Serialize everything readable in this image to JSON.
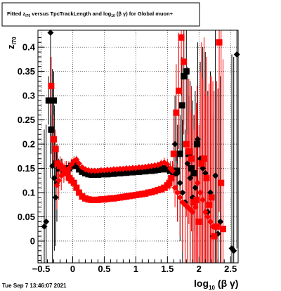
{
  "title": {
    "text_prefix": "Fitted  z",
    "sub_z": "I70",
    "text_mid": " versus TpcTrackLength and log",
    "sub_log": "10",
    "text_suffix": " (β  γ) for Global muon+"
  },
  "footer": {
    "timestamp": "Tue Sep  7 13:46:07 2021"
  },
  "colors": {
    "black_series": "#000000",
    "red_series": "#ff0000",
    "frame": "#000000",
    "background": "#ffffff"
  },
  "chart_data": {
    "type": "scatter",
    "title": "Fitted z_I70 versus TpcTrackLength and log10(β γ) for Global muon+",
    "xlabel_main": "log",
    "xlabel_sub": "10",
    "xlabel_tail": "(β γ)",
    "ylabel_main": "z",
    "ylabel_sub": "I70",
    "xlim": [
      -0.55,
      2.62
    ],
    "ylim": [
      -0.045,
      0.435
    ],
    "x_ticks": [
      -0.5,
      0,
      0.5,
      1,
      1.5,
      2,
      2.5
    ],
    "x_tick_labels": [
      "−0.5",
      "0",
      "0.5",
      "1",
      "1.5",
      "2",
      "2.5"
    ],
    "y_ticks": [
      0,
      0.05,
      0.1,
      0.15,
      0.2,
      0.25,
      0.3,
      0.35,
      0.4
    ],
    "y_tick_labels": [
      "0",
      "0.05",
      "0.1",
      "0.15",
      "0.2",
      "0.25",
      "0.3",
      "0.35",
      "0.4"
    ],
    "grid": true,
    "series": [
      {
        "color": "#000000",
        "marker": "square",
        "points": [
          [
            -0.38,
            0.29,
            0.05
          ],
          [
            -0.34,
            0.23,
            0.05
          ],
          [
            -0.3,
            0.29,
            0.06
          ],
          [
            -0.26,
            0.16,
            0.03
          ],
          [
            -0.22,
            0.15,
            0.02
          ],
          [
            -0.18,
            0.15,
            0.02
          ],
          [
            -0.14,
            0.145,
            0.01
          ],
          [
            -0.1,
            0.145,
            0.01
          ],
          [
            -0.06,
            0.15,
            0.01
          ],
          [
            -0.02,
            0.155,
            0.01
          ],
          [
            0.02,
            0.16,
            0.01
          ],
          [
            0.06,
            0.155,
            0.008
          ],
          [
            0.1,
            0.148,
            0.006
          ],
          [
            0.15,
            0.143,
            0.005
          ],
          [
            0.2,
            0.14,
            0.004
          ],
          [
            0.25,
            0.138,
            0.004
          ],
          [
            0.3,
            0.137,
            0.004
          ],
          [
            0.35,
            0.137,
            0.004
          ],
          [
            0.4,
            0.137,
            0.004
          ],
          [
            0.45,
            0.138,
            0.004
          ],
          [
            0.5,
            0.138,
            0.004
          ],
          [
            0.55,
            0.138,
            0.004
          ],
          [
            0.6,
            0.139,
            0.004
          ],
          [
            0.65,
            0.139,
            0.004
          ],
          [
            0.7,
            0.14,
            0.004
          ],
          [
            0.75,
            0.14,
            0.004
          ],
          [
            0.8,
            0.141,
            0.004
          ],
          [
            0.85,
            0.141,
            0.004
          ],
          [
            0.9,
            0.142,
            0.004
          ],
          [
            0.95,
            0.142,
            0.004
          ],
          [
            1.0,
            0.143,
            0.004
          ],
          [
            1.05,
            0.143,
            0.004
          ],
          [
            1.1,
            0.144,
            0.004
          ],
          [
            1.15,
            0.144,
            0.004
          ],
          [
            1.2,
            0.145,
            0.005
          ],
          [
            1.25,
            0.145,
            0.005
          ],
          [
            1.3,
            0.146,
            0.005
          ],
          [
            1.35,
            0.147,
            0.005
          ],
          [
            1.4,
            0.148,
            0.006
          ],
          [
            1.45,
            0.15,
            0.008
          ],
          [
            1.5,
            0.148,
            0.01
          ],
          [
            1.55,
            0.145,
            0.015
          ],
          [
            1.6,
            0.14,
            0.02
          ],
          [
            1.65,
            0.145,
            0.04
          ],
          [
            1.7,
            0.18,
            0.08
          ],
          [
            1.73,
            0.28,
            0.1
          ],
          [
            1.76,
            0.34,
            0.1
          ],
          [
            1.8,
            0.35,
            0.12
          ],
          [
            1.84,
            0.18,
            0.12
          ],
          [
            1.88,
            0.15,
            0.12
          ],
          [
            1.92,
            0.14,
            0.12
          ],
          [
            1.97,
            0.2,
            0.12
          ]
        ]
      },
      {
        "color": "#000000",
        "marker": "diamond",
        "points": [
          [
            -0.45,
            0.03,
            0.2
          ],
          [
            -0.42,
            0.04,
            0.2
          ],
          [
            -0.35,
            0.43,
            0.3
          ],
          [
            -0.32,
            0.155,
            0.2
          ],
          [
            -0.29,
            0.13,
            0.15
          ],
          [
            -0.27,
            0.09,
            0.1
          ],
          [
            -0.25,
            0.12,
            0.08
          ],
          [
            1.62,
            0.2,
            0.1
          ],
          [
            1.66,
            0.14,
            0.1
          ],
          [
            1.7,
            0.12,
            0.12
          ],
          [
            1.74,
            0.1,
            0.15
          ],
          [
            1.78,
            0.08,
            0.15
          ],
          [
            1.82,
            0.16,
            0.2
          ],
          [
            1.86,
            0.13,
            0.2
          ],
          [
            1.9,
            0.09,
            0.2
          ],
          [
            1.94,
            0.11,
            0.2
          ],
          [
            1.98,
            0.21,
            0.2
          ],
          [
            2.02,
            0.17,
            0.2
          ],
          [
            2.06,
            0.15,
            0.25
          ],
          [
            2.1,
            0.14,
            0.25
          ],
          [
            2.14,
            0.06,
            0.25
          ],
          [
            2.18,
            0.1,
            0.25
          ],
          [
            2.22,
            0.01,
            0.25
          ],
          [
            2.26,
            0.135,
            0.3
          ],
          [
            2.3,
            0.015,
            0.3
          ],
          [
            2.34,
            0.04,
            0.3
          ],
          [
            2.52,
            -0.015,
            0.4
          ],
          [
            2.55,
            -0.02,
            0.4
          ],
          [
            2.6,
            0.385,
            0.4
          ]
        ]
      },
      {
        "color": "#ff0000",
        "marker": "square",
        "points": [
          [
            -0.34,
            0.32,
            0.06
          ],
          [
            -0.3,
            0.21,
            0.05
          ],
          [
            -0.27,
            0.19,
            0.04
          ],
          [
            -0.24,
            0.16,
            0.03
          ],
          [
            -0.2,
            0.155,
            0.02
          ],
          [
            -0.16,
            0.15,
            0.02
          ],
          [
            -0.12,
            0.145,
            0.02
          ],
          [
            -0.08,
            0.14,
            0.015
          ],
          [
            -0.05,
            0.13,
            0.012
          ],
          [
            -0.02,
            0.125,
            0.01
          ],
          [
            0.02,
            0.12,
            0.008
          ],
          [
            0.06,
            0.11,
            0.006
          ],
          [
            0.1,
            0.1,
            0.005
          ],
          [
            0.15,
            0.092,
            0.004
          ],
          [
            0.2,
            0.088,
            0.004
          ],
          [
            0.25,
            0.086,
            0.004
          ],
          [
            0.3,
            0.085,
            0.004
          ],
          [
            0.35,
            0.085,
            0.004
          ],
          [
            0.4,
            0.085,
            0.004
          ],
          [
            0.45,
            0.086,
            0.004
          ],
          [
            0.5,
            0.086,
            0.004
          ],
          [
            0.55,
            0.087,
            0.004
          ],
          [
            0.6,
            0.088,
            0.004
          ],
          [
            0.65,
            0.088,
            0.004
          ],
          [
            0.7,
            0.089,
            0.004
          ],
          [
            0.75,
            0.09,
            0.004
          ],
          [
            0.8,
            0.091,
            0.004
          ],
          [
            0.85,
            0.092,
            0.004
          ],
          [
            0.9,
            0.093,
            0.004
          ],
          [
            0.95,
            0.094,
            0.004
          ],
          [
            1.0,
            0.095,
            0.004
          ],
          [
            1.05,
            0.096,
            0.004
          ],
          [
            1.1,
            0.097,
            0.005
          ],
          [
            1.15,
            0.098,
            0.005
          ],
          [
            1.2,
            0.1,
            0.005
          ],
          [
            1.25,
            0.101,
            0.005
          ],
          [
            1.3,
            0.103,
            0.006
          ],
          [
            1.35,
            0.105,
            0.006
          ],
          [
            1.4,
            0.107,
            0.007
          ],
          [
            1.45,
            0.11,
            0.01
          ],
          [
            1.5,
            0.115,
            0.012
          ],
          [
            1.53,
            0.12,
            0.015
          ],
          [
            1.56,
            0.13,
            0.02
          ],
          [
            1.6,
            0.18,
            0.08
          ],
          [
            1.64,
            0.265,
            0.1
          ],
          [
            1.68,
            0.31,
            0.12
          ],
          [
            1.72,
            0.42,
            0.12
          ],
          [
            1.76,
            0.37,
            0.15
          ],
          [
            1.8,
            0.2,
            0.15
          ],
          [
            1.84,
            0.185,
            0.15
          ],
          [
            1.88,
            0.17,
            0.15
          ],
          [
            1.92,
            0.08,
            0.15
          ],
          [
            1.96,
            0.085,
            0.2
          ],
          [
            2.0,
            0.04,
            0.2
          ],
          [
            2.04,
            0.16,
            0.25
          ],
          [
            2.08,
            0.17,
            0.25
          ],
          [
            2.12,
            0.13,
            0.25
          ],
          [
            2.16,
            0.075,
            0.25
          ],
          [
            2.2,
            0.09,
            0.25
          ],
          [
            2.24,
            0.01,
            0.3
          ],
          [
            2.28,
            0.03,
            0.3
          ],
          [
            2.32,
            0.41,
            0.35
          ],
          [
            2.35,
            0.12,
            0.35
          ],
          [
            2.38,
            0.025,
            0.35
          ]
        ]
      },
      {
        "color": "#ff0000",
        "marker": "diamond",
        "points": [
          [
            -0.25,
            0.115,
            0.05
          ],
          [
            -0.22,
            0.125,
            0.04
          ],
          [
            -0.18,
            0.135,
            0.03
          ],
          [
            -0.14,
            0.14,
            0.02
          ],
          [
            -0.1,
            0.145,
            0.02
          ],
          [
            -0.06,
            0.15,
            0.015
          ],
          [
            -0.02,
            0.158,
            0.012
          ],
          [
            0.02,
            0.165,
            0.01
          ],
          [
            0.06,
            0.168,
            0.008
          ],
          [
            0.1,
            0.16,
            0.006
          ],
          [
            0.15,
            0.152,
            0.005
          ],
          [
            0.2,
            0.148,
            0.005
          ],
          [
            0.25,
            0.146,
            0.004
          ],
          [
            0.3,
            0.145,
            0.004
          ],
          [
            0.35,
            0.145,
            0.004
          ],
          [
            0.4,
            0.145,
            0.004
          ],
          [
            0.45,
            0.146,
            0.004
          ],
          [
            0.5,
            0.146,
            0.004
          ],
          [
            0.55,
            0.147,
            0.004
          ],
          [
            0.6,
            0.147,
            0.004
          ],
          [
            0.65,
            0.148,
            0.004
          ],
          [
            0.7,
            0.148,
            0.004
          ],
          [
            0.75,
            0.149,
            0.004
          ],
          [
            0.8,
            0.149,
            0.004
          ],
          [
            0.85,
            0.15,
            0.004
          ],
          [
            0.9,
            0.15,
            0.004
          ],
          [
            0.95,
            0.151,
            0.004
          ],
          [
            1.0,
            0.151,
            0.004
          ],
          [
            1.05,
            0.152,
            0.004
          ],
          [
            1.1,
            0.152,
            0.005
          ],
          [
            1.15,
            0.153,
            0.005
          ],
          [
            1.2,
            0.154,
            0.005
          ],
          [
            1.25,
            0.155,
            0.005
          ],
          [
            1.3,
            0.156,
            0.006
          ],
          [
            1.35,
            0.157,
            0.007
          ],
          [
            1.4,
            0.16,
            0.008
          ],
          [
            1.45,
            0.162,
            0.01
          ],
          [
            1.5,
            0.158,
            0.012
          ],
          [
            1.55,
            0.15,
            0.015
          ],
          [
            1.58,
            0.145,
            0.02
          ],
          [
            1.62,
            0.11,
            0.04
          ],
          [
            1.66,
            0.1,
            0.06
          ],
          [
            1.7,
            0.09,
            0.08
          ],
          [
            1.74,
            0.08,
            0.1
          ],
          [
            1.78,
            0.075,
            0.12
          ],
          [
            1.82,
            0.07,
            0.15
          ],
          [
            1.86,
            0.065,
            0.2
          ],
          [
            1.9,
            0.06,
            0.2
          ],
          [
            1.94,
            0.07,
            0.2
          ],
          [
            1.98,
            0.12,
            0.2
          ],
          [
            2.02,
            0.1,
            0.25
          ],
          [
            2.06,
            0.085,
            0.25
          ],
          [
            2.1,
            0.06,
            0.25
          ],
          [
            2.14,
            0.05,
            0.25
          ],
          [
            2.18,
            0.04,
            0.3
          ],
          [
            2.22,
            0.03,
            0.3
          ]
        ]
      }
    ]
  }
}
